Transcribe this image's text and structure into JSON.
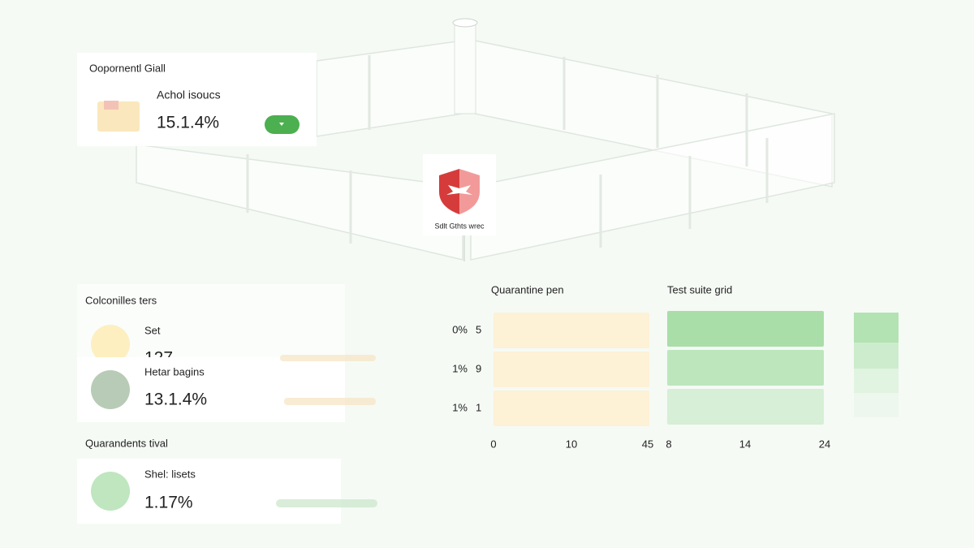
{
  "card": {
    "title": "Oopornentl Giall",
    "label": "Achol isoucs",
    "value": "15.1.4%"
  },
  "badge": {
    "label": "Sdlt Gthts wrec"
  },
  "panel": {
    "title": "Colconilles ters",
    "items": [
      {
        "label": "Set",
        "value": "127"
      },
      {
        "label": "Hetar bagins",
        "value": "13.1.4%"
      }
    ]
  },
  "section": {
    "title": "Quarandents tival",
    "item": {
      "label": "Shel: lisets",
      "value": "1.17%"
    }
  },
  "charts": [
    {
      "title": "Quarantine pen",
      "rows": [
        {
          "percent": "0%",
          "count": "5"
        },
        {
          "percent": "1%",
          "count": "9"
        },
        {
          "percent": "1%",
          "count": "1"
        }
      ],
      "ticks": [
        "0",
        "10",
        "45"
      ]
    },
    {
      "title": "Test suite grid",
      "ticks": [
        "8",
        "14",
        "24"
      ]
    }
  ]
}
